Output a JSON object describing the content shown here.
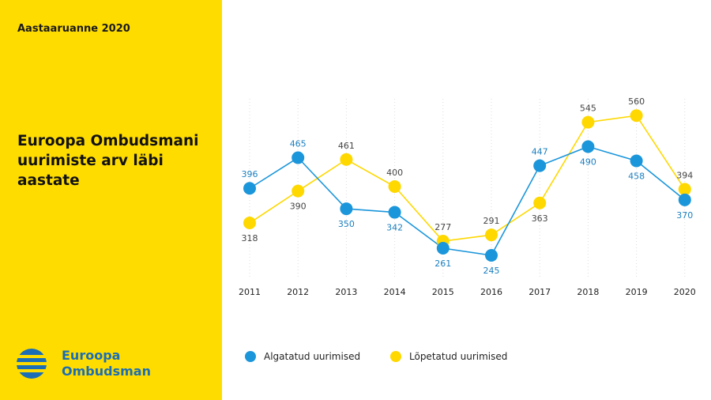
{
  "header": {
    "report_label": "Aastaaruanne 2020"
  },
  "title_lines": [
    "Euroopa Ombudsmani",
    "uurimiste arv läbi",
    "aastate"
  ],
  "logo": {
    "line1": "Euroopa",
    "line2": "Ombudsman",
    "icon": "eu-ombudsman-logo-icon"
  },
  "colors": {
    "panel": "#FFDC00",
    "blue": "#1B96DB",
    "yellow": "#FFD800",
    "brand": "#1B6EB5"
  },
  "chart_data": {
    "type": "line",
    "title": "Euroopa Ombudsmani uurimiste arv läbi aastate",
    "x": [
      "2011",
      "2012",
      "2013",
      "2014",
      "2015",
      "2016",
      "2017",
      "2018",
      "2019",
      "2020"
    ],
    "series": [
      {
        "name": "Algatatud uurimised",
        "color": "#1B96DB",
        "values": [
          396,
          465,
          350,
          342,
          261,
          245,
          447,
          490,
          458,
          370
        ]
      },
      {
        "name": "Lõpetatud uurimised",
        "color": "#FFD800",
        "values": [
          318,
          390,
          461,
          400,
          277,
          291,
          363,
          545,
          560,
          394
        ]
      }
    ],
    "ylim": [
      200,
      600
    ],
    "grid": "vertical-dotted",
    "legend_position": "bottom"
  }
}
